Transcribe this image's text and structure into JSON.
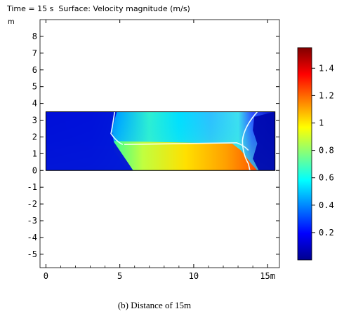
{
  "header": {
    "title": "Time = 15 s  Surface: Velocity magnitude (m/s)",
    "y_unit": "m"
  },
  "caption": "(b) Distance of 15m",
  "chart_data": {
    "type": "heatmap",
    "title": "Time = 15 s  Surface: Velocity magnitude (m/s)",
    "xlabel": "",
    "ylabel": "m",
    "x_unit_suffix": "m",
    "xlim": [
      -0.4,
      15.8
    ],
    "ylim": [
      -5.8,
      9.0
    ],
    "x_ticks": [
      0,
      5,
      10,
      15
    ],
    "x_tick_labels": [
      "0",
      "5",
      "10",
      "15m"
    ],
    "y_ticks": [
      -5,
      -4,
      -3,
      -2,
      -1,
      0,
      1,
      2,
      3,
      4,
      5,
      6,
      7,
      8
    ],
    "y_tick_labels": [
      "-5",
      "-4",
      "-3",
      "-2",
      "-1",
      "0",
      "1",
      "2",
      "3",
      "4",
      "5",
      "6",
      "7",
      "8"
    ],
    "domain": {
      "x": [
        0,
        15.5
      ],
      "y": [
        0,
        3.5
      ]
    },
    "colorbar": {
      "range": [
        0,
        1.55
      ],
      "ticks": [
        0.2,
        0.4,
        0.6,
        0.8,
        1,
        1.2,
        1.4
      ],
      "tick_labels": [
        "0.2",
        "0.4",
        "0.6",
        "0.8",
        "1",
        "1.2",
        "1.4"
      ],
      "colors": [
        "#00008f",
        "#0000ff",
        "#0080ff",
        "#00ffff",
        "#80ff80",
        "#ffff00",
        "#ff8000",
        "#ff0000",
        "#800000"
      ]
    },
    "grid": false
  }
}
